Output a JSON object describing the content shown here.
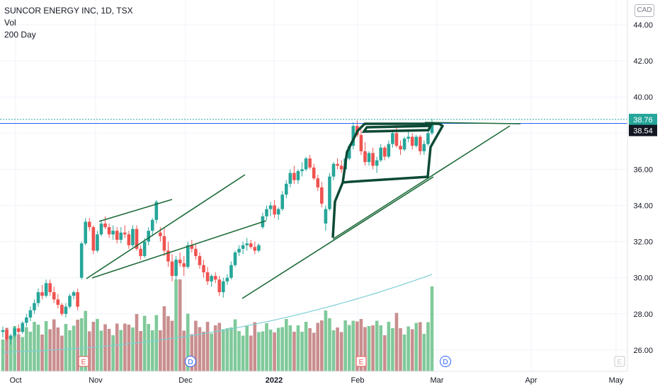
{
  "legend": {
    "symbol": "SUNCOR ENERGY INC, 1D, TSX",
    "volume": "Vol",
    "ma": "200 Day"
  },
  "currency": "CAD",
  "colors": {
    "up": "#26a69a",
    "down": "#ef5350",
    "vol_up": "#80c99a",
    "vol_down": "#c98e8e",
    "ma": "#7ecfd4",
    "drawing": "#1e6b3a",
    "drawing_thick": "#0d4a36",
    "price_line": "#2962ff"
  },
  "chart_data": {
    "type": "candlestick",
    "title": "SUNCOR ENERGY INC, 1D, TSX",
    "y_axis": {
      "ticks": [
        "44.00",
        "42.00",
        "40.00",
        "38.00",
        "36.00",
        "34.00",
        "32.00",
        "30.00",
        "28.00",
        "26.00"
      ],
      "range": [
        25,
        45
      ]
    },
    "x_axis": {
      "ticks": [
        "Oct",
        "Nov",
        "Dec",
        "2022",
        "Feb",
        "Mar",
        "Apr",
        "May"
      ]
    },
    "last_price_labels": [
      "38.76",
      "38.54"
    ],
    "candles": [
      [
        27.0,
        27.3,
        26.7,
        27.1
      ],
      [
        27.1,
        27.2,
        26.5,
        26.6
      ],
      [
        26.6,
        26.9,
        26.3,
        26.8
      ],
      [
        26.8,
        27.3,
        26.7,
        27.2
      ],
      [
        27.2,
        27.4,
        26.9,
        27.0
      ],
      [
        27.0,
        27.6,
        26.9,
        27.5
      ],
      [
        27.5,
        28.0,
        27.3,
        27.8
      ],
      [
        27.8,
        28.4,
        27.6,
        28.2
      ],
      [
        28.2,
        28.8,
        28.0,
        28.6
      ],
      [
        28.6,
        29.4,
        28.4,
        29.2
      ],
      [
        29.2,
        29.6,
        28.8,
        29.0
      ],
      [
        29.0,
        29.9,
        28.9,
        29.7
      ],
      [
        29.7,
        29.9,
        29.0,
        29.2
      ],
      [
        29.2,
        29.5,
        28.6,
        28.8
      ],
      [
        28.8,
        29.1,
        28.3,
        28.5
      ],
      [
        28.5,
        28.6,
        27.9,
        28.0
      ],
      [
        28.0,
        28.6,
        27.8,
        28.4
      ],
      [
        28.4,
        29.1,
        28.3,
        29.0
      ],
      [
        29.0,
        29.3,
        28.8,
        29.2
      ],
      [
        29.2,
        29.4,
        28.2,
        28.4
      ],
      [
        30.0,
        32.0,
        29.9,
        31.9
      ],
      [
        31.9,
        33.3,
        31.8,
        33.1
      ],
      [
        33.1,
        33.3,
        32.6,
        32.8
      ],
      [
        32.8,
        32.9,
        31.3,
        31.5
      ],
      [
        31.5,
        32.6,
        31.4,
        32.4
      ],
      [
        32.4,
        33.2,
        32.3,
        33.0
      ],
      [
        33.0,
        33.4,
        32.7,
        32.8
      ],
      [
        32.8,
        33.0,
        32.2,
        32.4
      ],
      [
        32.4,
        32.9,
        32.1,
        32.6
      ],
      [
        32.6,
        32.8,
        31.9,
        32.1
      ],
      [
        32.1,
        32.8,
        31.9,
        32.5
      ],
      [
        32.5,
        32.9,
        32.2,
        32.4
      ],
      [
        32.4,
        32.6,
        31.6,
        31.8
      ],
      [
        31.8,
        32.9,
        31.7,
        32.7
      ],
      [
        32.7,
        32.9,
        31.5,
        31.6
      ],
      [
        31.6,
        31.8,
        31.0,
        31.2
      ],
      [
        31.2,
        32.2,
        31.1,
        32.0
      ],
      [
        32.0,
        32.8,
        31.8,
        32.6
      ],
      [
        32.6,
        33.3,
        32.3,
        33.2
      ],
      [
        33.2,
        34.3,
        33.0,
        34.2
      ],
      [
        32.5,
        32.8,
        32.0,
        32.3
      ],
      [
        32.3,
        32.8,
        31.2,
        31.5
      ],
      [
        31.5,
        32.0,
        30.6,
        30.9
      ],
      [
        30.9,
        31.3,
        29.8,
        30.1
      ],
      [
        30.1,
        31.2,
        29.9,
        31.0
      ],
      [
        31.0,
        31.4,
        30.6,
        30.8
      ],
      [
        30.8,
        31.2,
        30.1,
        30.6
      ],
      [
        30.6,
        32.0,
        30.5,
        31.8
      ],
      [
        31.8,
        32.1,
        31.4,
        31.6
      ],
      [
        31.6,
        31.9,
        31.0,
        31.2
      ],
      [
        31.2,
        31.4,
        30.5,
        30.7
      ],
      [
        30.7,
        31.0,
        30.0,
        30.3
      ],
      [
        30.3,
        30.6,
        29.6,
        29.8
      ],
      [
        29.8,
        30.2,
        29.5,
        30.1
      ],
      [
        30.1,
        30.3,
        29.7,
        29.9
      ],
      [
        29.9,
        30.1,
        29.0,
        29.2
      ],
      [
        29.2,
        30.0,
        28.9,
        29.8
      ],
      [
        29.8,
        30.2,
        29.6,
        30.0
      ],
      [
        30.0,
        30.9,
        29.9,
        30.7
      ],
      [
        30.7,
        31.5,
        30.6,
        31.4
      ],
      [
        31.4,
        31.8,
        31.2,
        31.6
      ],
      [
        31.6,
        32.0,
        31.3,
        31.8
      ],
      [
        31.8,
        32.2,
        31.5,
        31.9
      ],
      [
        31.9,
        32.1,
        31.6,
        31.7
      ],
      [
        31.7,
        32.0,
        31.3,
        31.5
      ],
      [
        31.5,
        31.9,
        31.4,
        31.8
      ],
      [
        32.8,
        33.6,
        32.7,
        33.4
      ],
      [
        33.4,
        34.0,
        33.2,
        33.8
      ],
      [
        33.8,
        34.2,
        33.4,
        34.0
      ],
      [
        34.0,
        34.3,
        33.3,
        33.5
      ],
      [
        33.5,
        33.9,
        33.2,
        33.8
      ],
      [
        33.8,
        34.8,
        33.7,
        34.6
      ],
      [
        34.6,
        35.4,
        34.4,
        35.2
      ],
      [
        35.2,
        36.0,
        35.0,
        35.8
      ],
      [
        35.8,
        36.2,
        35.2,
        35.4
      ],
      [
        35.4,
        36.0,
        35.2,
        35.9
      ],
      [
        35.9,
        36.4,
        35.6,
        36.0
      ],
      [
        36.0,
        36.7,
        35.9,
        36.6
      ],
      [
        36.6,
        36.8,
        36.0,
        36.1
      ],
      [
        36.1,
        36.3,
        35.4,
        35.5
      ],
      [
        35.5,
        35.7,
        34.8,
        35.0
      ],
      [
        35.0,
        35.3,
        33.9,
        34.1
      ],
      [
        33.0,
        34.0,
        32.6,
        33.8
      ],
      [
        33.8,
        35.8,
        33.7,
        35.6
      ],
      [
        35.6,
        36.4,
        35.4,
        36.3
      ],
      [
        36.3,
        36.6,
        36.0,
        36.2
      ],
      [
        36.2,
        36.5,
        35.8,
        36.0
      ],
      [
        36.0,
        36.7,
        35.9,
        36.6
      ],
      [
        36.6,
        37.4,
        36.5,
        37.3
      ],
      [
        37.3,
        38.6,
        37.1,
        38.4
      ],
      [
        38.4,
        38.7,
        37.8,
        37.9
      ],
      [
        37.9,
        38.2,
        36.8,
        37.0
      ],
      [
        37.0,
        37.5,
        36.2,
        36.4
      ],
      [
        36.4,
        37.0,
        36.2,
        36.9
      ],
      [
        36.9,
        37.2,
        36.0,
        36.2
      ],
      [
        36.2,
        36.7,
        35.8,
        36.5
      ],
      [
        36.5,
        37.4,
        36.4,
        37.2
      ],
      [
        37.2,
        37.3,
        36.5,
        36.7
      ],
      [
        36.7,
        37.6,
        36.6,
        37.4
      ],
      [
        37.4,
        38.2,
        37.2,
        38.0
      ],
      [
        38.0,
        38.5,
        37.2,
        37.3
      ],
      [
        37.3,
        37.6,
        36.8,
        37.1
      ],
      [
        37.1,
        37.8,
        37.0,
        37.7
      ],
      [
        37.7,
        38.2,
        37.5,
        37.8
      ],
      [
        37.8,
        38.0,
        37.1,
        37.3
      ],
      [
        37.3,
        37.9,
        37.2,
        37.8
      ],
      [
        37.8,
        37.9,
        36.8,
        37.0
      ],
      [
        37.0,
        37.6,
        36.8,
        37.4
      ],
      [
        37.4,
        38.2,
        37.3,
        38.0
      ],
      [
        38.0,
        38.8,
        37.9,
        38.6
      ]
    ]
  }
}
